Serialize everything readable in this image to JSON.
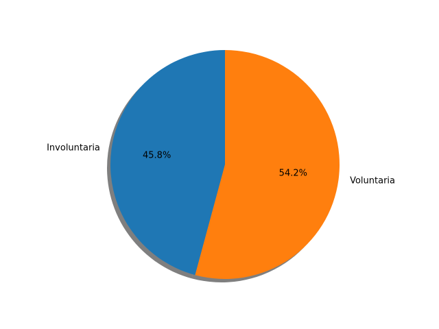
{
  "chart_data": {
    "type": "pie",
    "title": "",
    "slices": [
      {
        "label": "Involuntaria",
        "value": 45.8,
        "pct_label": "45.8%",
        "color": "#1f77b4"
      },
      {
        "label": "Voluntaria",
        "value": 54.2,
        "pct_label": "54.2%",
        "color": "#ff7f0e"
      }
    ],
    "start_angle_deg": 90,
    "direction": "counterclockwise",
    "shadow": true,
    "legend": "none"
  }
}
